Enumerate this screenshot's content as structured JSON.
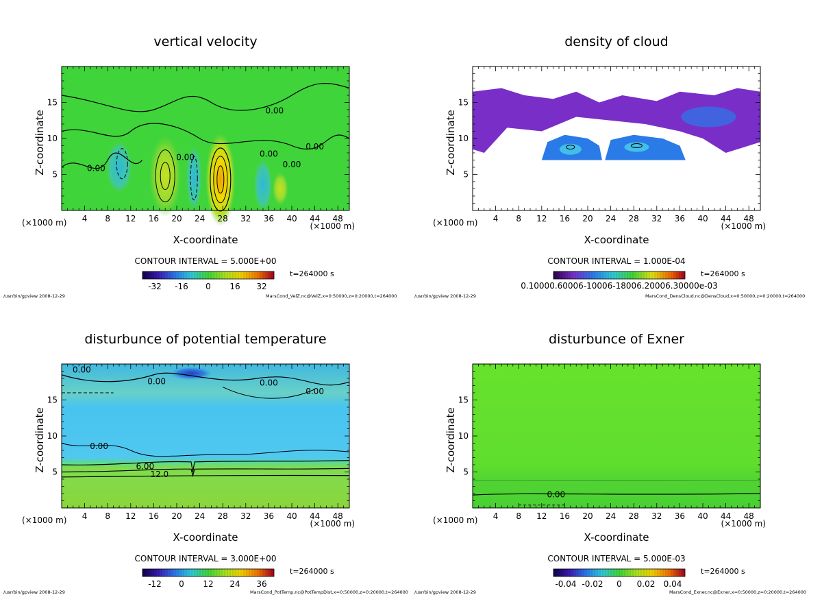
{
  "chart_data": [
    {
      "type": "heatmap",
      "title": "vertical velocity",
      "xlabel": "X-coordinate",
      "ylabel": "Z-coordinate",
      "x_unit": "(×1000 m)",
      "x_ticks": [
        4,
        8,
        12,
        16,
        20,
        24,
        28,
        32,
        36,
        40,
        44,
        48
      ],
      "y_ticks": [
        5,
        10,
        15
      ],
      "xlim": [
        0,
        50
      ],
      "ylim": [
        0,
        20
      ],
      "contour_interval": "CONTOUR INTERVAL = 5.000E+00",
      "time": "t=264000 s",
      "colorbar_ticks": [
        "-32",
        "-16",
        "0",
        "16",
        "32"
      ],
      "contour_labels": [
        "0.00",
        "0.00",
        "0.00",
        "0.00",
        "0.00",
        "0.00"
      ],
      "colors": {
        "background": "#3ed43a",
        "low": "#30c8d8",
        "high": "#f0d000"
      },
      "footer_left": "/usr/bin/gpview  2008-12-29",
      "footer_right": "MarsCond_VelZ.nc@VelZ,x=0:50000,z=0:20000,t=264000"
    },
    {
      "type": "heatmap",
      "title": "density of cloud",
      "xlabel": "X-coordinate",
      "ylabel": "Z-coordinate",
      "x_unit": "(×1000 m)",
      "x_ticks": [
        4,
        8,
        12,
        16,
        20,
        24,
        28,
        32,
        36,
        40,
        44,
        48
      ],
      "y_ticks": [
        5,
        10,
        15
      ],
      "xlim": [
        0,
        50
      ],
      "ylim": [
        0,
        20
      ],
      "contour_interval": "CONTOUR INTERVAL = 1.000E-04",
      "time": "t=264000 s",
      "colorbar_ticks": [
        "0.10000.60006-10006-18006.20006.30000e-03"
      ],
      "colors": {
        "background": "#ffffff",
        "cloud": "#7a2ec8",
        "dense": "#2a7ae8"
      },
      "footer_left": "/usr/bin/gpview  2008-12-29",
      "footer_right": "MarsCond_DensCloud.nc@DensCloud,x=0:50000,z=0:20000,t=264000"
    },
    {
      "type": "heatmap",
      "title": "disturbunce of potential temperature",
      "xlabel": "X-coordinate",
      "ylabel": "Z-coordinate",
      "x_unit": "(×1000 m)",
      "x_ticks": [
        4,
        8,
        12,
        16,
        20,
        24,
        28,
        32,
        36,
        40,
        44,
        48
      ],
      "y_ticks": [
        5,
        10,
        15
      ],
      "xlim": [
        0,
        50
      ],
      "ylim": [
        0,
        20
      ],
      "contour_interval": "CONTOUR INTERVAL = 3.000E+00",
      "time": "t=264000 s",
      "colorbar_ticks": [
        "-12",
        "0",
        "12",
        "24",
        "36"
      ],
      "contour_labels": [
        "0.00",
        "0.00",
        "0.00",
        "0.00",
        "0.00",
        "6.00",
        "12.0"
      ],
      "colors": {
        "top": "#3ab8e0",
        "middle": "#4fc8f0",
        "bottom": "#7ed43a"
      },
      "footer_left": "/usr/bin/gpview  2008-12-29",
      "footer_right": "MarsCond_PotTemp.nc@PotTempDist,x=0:50000,z=0:20000,t=264000"
    },
    {
      "type": "heatmap",
      "title": "disturbunce of Exner",
      "xlabel": "X-coordinate",
      "ylabel": "Z-coordinate",
      "x_unit": "(×1000 m)",
      "x_ticks": [
        4,
        8,
        12,
        16,
        20,
        24,
        28,
        32,
        36,
        40,
        44,
        48
      ],
      "y_ticks": [
        5,
        10,
        15
      ],
      "xlim": [
        0,
        50
      ],
      "ylim": [
        0,
        20
      ],
      "contour_interval": "CONTOUR INTERVAL = 5.000E-03",
      "time": "t=264000 s",
      "colorbar_ticks": [
        "-0.04",
        "-0.02",
        "0",
        "0.02",
        "0.04"
      ],
      "contour_labels": [
        "0.00"
      ],
      "colors": {
        "upper": "#6ae42a",
        "lower": "#52d830"
      },
      "footer_left": "/usr/bin/gpview  2008-12-29",
      "footer_right": "MarsCond_Exner.nc@Exner,x=0:50000,z=0:20000,t=264000"
    }
  ]
}
